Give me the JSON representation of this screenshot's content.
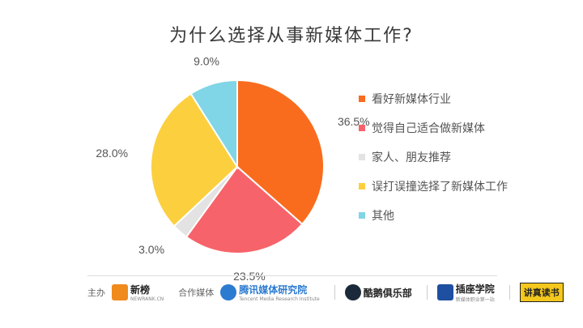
{
  "chart_data": {
    "type": "pie",
    "title": "为什么选择从事新媒体工作?",
    "categories": [
      "看好新媒体行业",
      "觉得自己适合做新媒体",
      "家人、朋友推荐",
      "误打误撞选择了新媒体工作",
      "其他"
    ],
    "values": [
      36.5,
      23.5,
      3.0,
      28.0,
      9.0
    ],
    "labels": [
      "36.5%",
      "23.5%",
      "3.0%",
      "28.0%",
      "9.0%"
    ],
    "colors": [
      "#f96c1e",
      "#f7636a",
      "#e3e3e3",
      "#fccf3f",
      "#80d5e6"
    ],
    "legend_position": "right"
  },
  "footer": {
    "host_label": "主办",
    "partner_label": "合作媒体",
    "logos": [
      {
        "name": "新榜",
        "sub": "NEWRANK.CN"
      },
      {
        "name": "腾讯媒体研究院",
        "sub": "Tencent Media Research Institute"
      },
      {
        "name": "酷鹅俱乐部",
        "sub": ""
      },
      {
        "name": "插座学院",
        "sub": "新媒体职业第一站"
      },
      {
        "name": "讲真读书",
        "sub": ""
      }
    ]
  },
  "colors": {
    "logo_xinbang": "#f08a1d",
    "logo_tencent": "#2b7bd1",
    "logo_kue": "#1b2a3a",
    "logo_chazuo": "#1e4fa0"
  }
}
